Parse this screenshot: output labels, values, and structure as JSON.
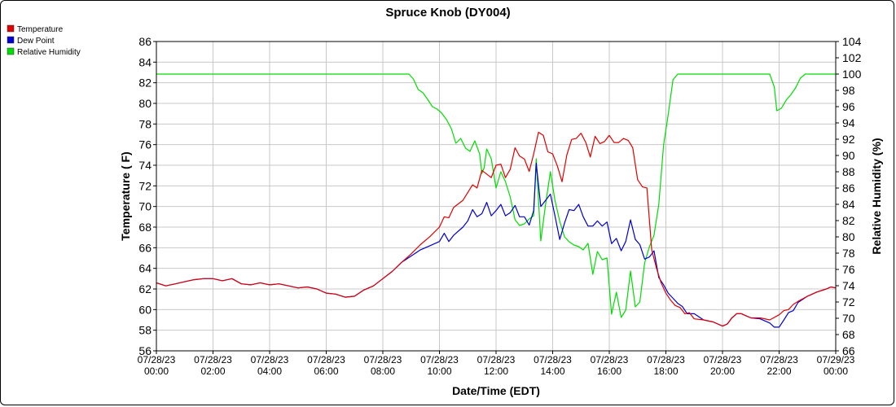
{
  "chart_data": {
    "type": "line",
    "title": "Spruce Knob (DY004)",
    "xlabel": "Date/Time (EDT)",
    "ylabel_left": "Temperature ( F)",
    "ylabel_right": "Relative Humidity (%)",
    "ylim_left": [
      56,
      86
    ],
    "ylim_right": [
      66,
      104
    ],
    "yticks_left": [
      56,
      58,
      60,
      62,
      64,
      66,
      68,
      70,
      72,
      74,
      76,
      78,
      80,
      82,
      84,
      86
    ],
    "yticks_right": [
      66,
      68,
      70,
      72,
      74,
      76,
      78,
      80,
      82,
      84,
      86,
      88,
      90,
      92,
      94,
      96,
      98,
      100,
      102,
      104
    ],
    "xlim_hours": [
      0,
      24
    ],
    "xticks": [
      {
        "hour": 0,
        "date": "07/28/23",
        "time": "00:00"
      },
      {
        "hour": 2,
        "date": "07/28/23",
        "time": "02:00"
      },
      {
        "hour": 4,
        "date": "07/28/23",
        "time": "04:00"
      },
      {
        "hour": 6,
        "date": "07/28/23",
        "time": "06:00"
      },
      {
        "hour": 8,
        "date": "07/28/23",
        "time": "08:00"
      },
      {
        "hour": 10,
        "date": "07/28/23",
        "time": "10:00"
      },
      {
        "hour": 12,
        "date": "07/28/23",
        "time": "12:00"
      },
      {
        "hour": 14,
        "date": "07/28/23",
        "time": "14:00"
      },
      {
        "hour": 16,
        "date": "07/28/23",
        "time": "16:00"
      },
      {
        "hour": 18,
        "date": "07/28/23",
        "time": "18:00"
      },
      {
        "hour": 20,
        "date": "07/28/23",
        "time": "20:00"
      },
      {
        "hour": 22,
        "date": "07/28/23",
        "time": "22:00"
      },
      {
        "hour": 24,
        "date": "07/29/23",
        "time": "00:00"
      }
    ],
    "grid": true,
    "legend_position": "top-left",
    "series": [
      {
        "name": "Temperature",
        "color": "#e00000",
        "axis": "left",
        "points": [
          [
            0,
            62.6
          ],
          [
            0.33,
            62.3
          ],
          [
            0.67,
            62.5
          ],
          [
            1,
            62.7
          ],
          [
            1.33,
            62.9
          ],
          [
            1.67,
            63.0
          ],
          [
            2,
            63.0
          ],
          [
            2.33,
            62.8
          ],
          [
            2.67,
            63.0
          ],
          [
            3,
            62.5
          ],
          [
            3.33,
            62.4
          ],
          [
            3.67,
            62.6
          ],
          [
            4,
            62.4
          ],
          [
            4.33,
            62.5
          ],
          [
            4.67,
            62.3
          ],
          [
            5,
            62.1
          ],
          [
            5.33,
            62.2
          ],
          [
            5.67,
            62.0
          ],
          [
            6,
            61.6
          ],
          [
            6.33,
            61.5
          ],
          [
            6.67,
            61.2
          ],
          [
            7,
            61.3
          ],
          [
            7.33,
            61.9
          ],
          [
            7.67,
            62.3
          ],
          [
            8,
            63.0
          ],
          [
            8.33,
            63.7
          ],
          [
            8.67,
            64.6
          ],
          [
            9,
            65.4
          ],
          [
            9.33,
            66.3
          ],
          [
            9.67,
            67.1
          ],
          [
            10,
            68.0
          ],
          [
            10.17,
            69.0
          ],
          [
            10.33,
            68.9
          ],
          [
            10.5,
            69.9
          ],
          [
            10.83,
            70.6
          ],
          [
            11.17,
            72.1
          ],
          [
            11.33,
            71.8
          ],
          [
            11.5,
            73.5
          ],
          [
            11.83,
            72.8
          ],
          [
            12,
            74.0
          ],
          [
            12.17,
            74.1
          ],
          [
            12.33,
            72.8
          ],
          [
            12.5,
            73.6
          ],
          [
            12.67,
            75.7
          ],
          [
            12.83,
            74.9
          ],
          [
            13,
            74.6
          ],
          [
            13.17,
            73.4
          ],
          [
            13.33,
            75.1
          ],
          [
            13.5,
            77.2
          ],
          [
            13.67,
            76.9
          ],
          [
            13.83,
            75.3
          ],
          [
            14,
            75.1
          ],
          [
            14.17,
            73.9
          ],
          [
            14.33,
            72.4
          ],
          [
            14.5,
            75.0
          ],
          [
            14.67,
            76.5
          ],
          [
            14.83,
            76.6
          ],
          [
            15,
            77.1
          ],
          [
            15.17,
            76.2
          ],
          [
            15.33,
            74.8
          ],
          [
            15.5,
            76.8
          ],
          [
            15.67,
            76.1
          ],
          [
            15.83,
            76.3
          ],
          [
            16,
            76.9
          ],
          [
            16.17,
            76.2
          ],
          [
            16.33,
            76.2
          ],
          [
            16.5,
            76.6
          ],
          [
            16.67,
            76.4
          ],
          [
            16.83,
            75.7
          ],
          [
            17,
            72.6
          ],
          [
            17.17,
            71.9
          ],
          [
            17.33,
            71.8
          ],
          [
            17.5,
            65.8
          ],
          [
            17.67,
            64.0
          ],
          [
            17.83,
            62.6
          ],
          [
            18,
            61.6
          ],
          [
            18.17,
            60.9
          ],
          [
            18.33,
            60.4
          ],
          [
            18.5,
            60.2
          ],
          [
            18.67,
            59.6
          ],
          [
            18.83,
            59.7
          ],
          [
            19,
            59.1
          ],
          [
            19.33,
            59.0
          ],
          [
            19.67,
            58.8
          ],
          [
            20,
            58.4
          ],
          [
            20.17,
            58.6
          ],
          [
            20.33,
            59.2
          ],
          [
            20.5,
            59.6
          ],
          [
            20.67,
            59.6
          ],
          [
            20.83,
            59.4
          ],
          [
            21,
            59.2
          ],
          [
            21.33,
            59.2
          ],
          [
            21.67,
            59.0
          ],
          [
            22,
            59.5
          ],
          [
            22.17,
            59.9
          ],
          [
            22.33,
            60.0
          ],
          [
            22.5,
            60.5
          ],
          [
            22.67,
            60.8
          ],
          [
            23,
            61.3
          ],
          [
            23.33,
            61.7
          ],
          [
            23.67,
            62.0
          ],
          [
            23.83,
            62.2
          ],
          [
            24,
            62.1
          ]
        ]
      },
      {
        "name": "Dew Point",
        "color": "#0000d0",
        "axis": "left",
        "points": [
          [
            0,
            62.6
          ],
          [
            0.33,
            62.3
          ],
          [
            0.67,
            62.5
          ],
          [
            1,
            62.7
          ],
          [
            1.33,
            62.9
          ],
          [
            1.67,
            63.0
          ],
          [
            2,
            63.0
          ],
          [
            2.33,
            62.8
          ],
          [
            2.67,
            63.0
          ],
          [
            3,
            62.5
          ],
          [
            3.33,
            62.4
          ],
          [
            3.67,
            62.6
          ],
          [
            4,
            62.4
          ],
          [
            4.33,
            62.5
          ],
          [
            4.67,
            62.3
          ],
          [
            5,
            62.1
          ],
          [
            5.33,
            62.2
          ],
          [
            5.67,
            62.0
          ],
          [
            6,
            61.6
          ],
          [
            6.33,
            61.5
          ],
          [
            6.67,
            61.2
          ],
          [
            7,
            61.3
          ],
          [
            7.33,
            61.9
          ],
          [
            7.67,
            62.3
          ],
          [
            8,
            63.0
          ],
          [
            8.33,
            63.7
          ],
          [
            8.67,
            64.6
          ],
          [
            9,
            65.2
          ],
          [
            9.33,
            65.8
          ],
          [
            9.67,
            66.2
          ],
          [
            10,
            66.6
          ],
          [
            10.17,
            67.4
          ],
          [
            10.33,
            66.6
          ],
          [
            10.5,
            67.2
          ],
          [
            10.83,
            68.0
          ],
          [
            11,
            68.6
          ],
          [
            11.17,
            69.7
          ],
          [
            11.33,
            69.0
          ],
          [
            11.5,
            69.3
          ],
          [
            11.67,
            70.4
          ],
          [
            11.83,
            69.1
          ],
          [
            12,
            69.6
          ],
          [
            12.17,
            70.2
          ],
          [
            12.33,
            69.1
          ],
          [
            12.5,
            69.4
          ],
          [
            12.67,
            70.1
          ],
          [
            12.83,
            69.0
          ],
          [
            13,
            69.0
          ],
          [
            13.17,
            68.2
          ],
          [
            13.33,
            69.6
          ],
          [
            13.42,
            74.2
          ],
          [
            13.58,
            70.0
          ],
          [
            13.75,
            70.6
          ],
          [
            13.92,
            71.2
          ],
          [
            14.08,
            69.1
          ],
          [
            14.25,
            66.8
          ],
          [
            14.42,
            68.4
          ],
          [
            14.58,
            69.7
          ],
          [
            14.75,
            69.6
          ],
          [
            14.92,
            70.2
          ],
          [
            15.08,
            69.0
          ],
          [
            15.25,
            68.1
          ],
          [
            15.42,
            68.1
          ],
          [
            15.58,
            68.6
          ],
          [
            15.75,
            68.1
          ],
          [
            15.92,
            68.5
          ],
          [
            16.08,
            66.4
          ],
          [
            16.25,
            66.9
          ],
          [
            16.42,
            65.7
          ],
          [
            16.58,
            66.6
          ],
          [
            16.75,
            68.7
          ],
          [
            16.92,
            66.8
          ],
          [
            17.08,
            66.3
          ],
          [
            17.25,
            64.9
          ],
          [
            17.42,
            65.1
          ],
          [
            17.58,
            65.7
          ],
          [
            17.75,
            63.1
          ],
          [
            17.92,
            62.4
          ],
          [
            18.08,
            61.6
          ],
          [
            18.25,
            61.1
          ],
          [
            18.42,
            60.6
          ],
          [
            18.58,
            60.3
          ],
          [
            18.75,
            59.6
          ],
          [
            19,
            59.6
          ],
          [
            19.33,
            59.0
          ],
          [
            19.67,
            58.8
          ],
          [
            20,
            58.4
          ],
          [
            20.17,
            58.6
          ],
          [
            20.33,
            59.2
          ],
          [
            20.5,
            59.6
          ],
          [
            20.67,
            59.6
          ],
          [
            20.83,
            59.4
          ],
          [
            21,
            59.2
          ],
          [
            21.33,
            59.1
          ],
          [
            21.67,
            58.7
          ],
          [
            21.83,
            58.3
          ],
          [
            22,
            58.3
          ],
          [
            22.17,
            59.0
          ],
          [
            22.33,
            59.7
          ],
          [
            22.5,
            59.9
          ],
          [
            22.67,
            60.7
          ],
          [
            23,
            61.3
          ],
          [
            23.33,
            61.7
          ],
          [
            23.67,
            62.0
          ],
          [
            23.83,
            62.2
          ],
          [
            24,
            62.1
          ]
        ]
      },
      {
        "name": "Relative Humidity",
        "color": "#00dd00",
        "axis": "right",
        "points": [
          [
            0,
            100
          ],
          [
            8.92,
            100
          ],
          [
            9.08,
            99.4
          ],
          [
            9.25,
            98.1
          ],
          [
            9.42,
            97.7
          ],
          [
            9.58,
            96.9
          ],
          [
            9.75,
            96.0
          ],
          [
            9.92,
            95.7
          ],
          [
            10.08,
            95.2
          ],
          [
            10.25,
            94.4
          ],
          [
            10.42,
            93.3
          ],
          [
            10.58,
            91.5
          ],
          [
            10.75,
            92.1
          ],
          [
            10.92,
            90.9
          ],
          [
            11.08,
            90.5
          ],
          [
            11.25,
            91.8
          ],
          [
            11.42,
            90.2
          ],
          [
            11.5,
            87.8
          ],
          [
            11.58,
            88.5
          ],
          [
            11.67,
            90.8
          ],
          [
            11.83,
            89.6
          ],
          [
            12,
            86.0
          ],
          [
            12.17,
            88.0
          ],
          [
            12.33,
            86.8
          ],
          [
            12.5,
            84.9
          ],
          [
            12.67,
            82.1
          ],
          [
            12.83,
            81.4
          ],
          [
            13,
            81.6
          ],
          [
            13.17,
            82.2
          ],
          [
            13.33,
            82.6
          ],
          [
            13.42,
            89.6
          ],
          [
            13.58,
            79.5
          ],
          [
            13.75,
            84.0
          ],
          [
            13.92,
            88.0
          ],
          [
            14.08,
            84.5
          ],
          [
            14.25,
            81.9
          ],
          [
            14.42,
            80.0
          ],
          [
            14.58,
            79.4
          ],
          [
            14.75,
            79.0
          ],
          [
            14.92,
            78.8
          ],
          [
            15.08,
            78.4
          ],
          [
            15.25,
            79.2
          ],
          [
            15.42,
            75.4
          ],
          [
            15.58,
            78.2
          ],
          [
            15.75,
            77.2
          ],
          [
            15.92,
            77.4
          ],
          [
            16.08,
            70.5
          ],
          [
            16.25,
            73.2
          ],
          [
            16.42,
            70.1
          ],
          [
            16.58,
            71.0
          ],
          [
            16.75,
            75.8
          ],
          [
            16.92,
            71.4
          ],
          [
            17.08,
            72.0
          ],
          [
            17.25,
            76.8
          ],
          [
            17.42,
            78.8
          ],
          [
            17.58,
            80.2
          ],
          [
            17.75,
            84.0
          ],
          [
            17.92,
            91.3
          ],
          [
            18.08,
            95.0
          ],
          [
            18.25,
            99.3
          ],
          [
            18.42,
            100
          ],
          [
            21.67,
            100
          ],
          [
            21.83,
            98.4
          ],
          [
            21.92,
            95.5
          ],
          [
            22.08,
            95.8
          ],
          [
            22.25,
            96.8
          ],
          [
            22.42,
            97.5
          ],
          [
            22.58,
            98.3
          ],
          [
            22.75,
            99.5
          ],
          [
            22.92,
            100
          ],
          [
            24,
            100
          ]
        ]
      }
    ]
  }
}
